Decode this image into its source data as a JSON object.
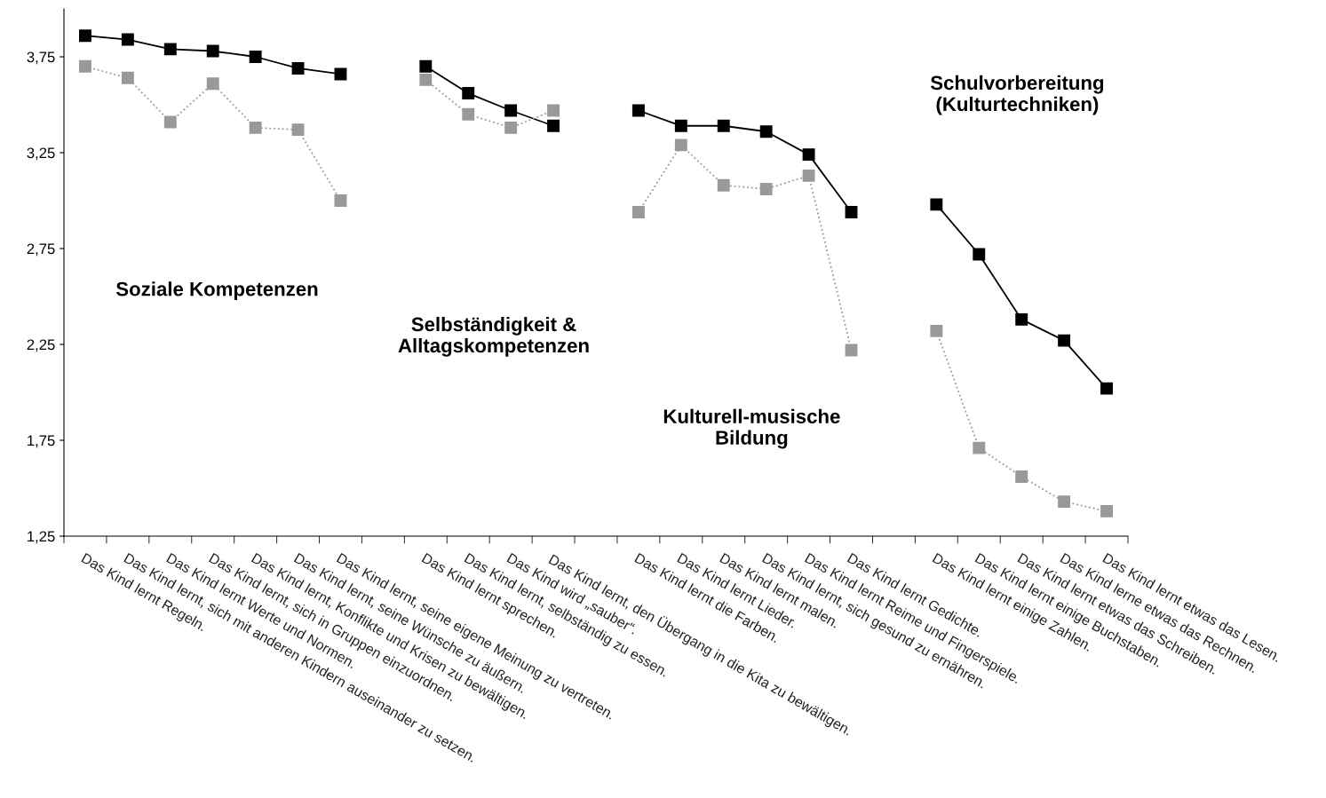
{
  "chart_data": {
    "type": "line",
    "categories": [
      "Das Kind lernt Regeln.",
      "Das Kind lernt, sich mit anderen Kindern auseinander zu setzen.",
      "Das Kind lernt Werte und Normen.",
      "Das Kind lernt, sich in Gruppen einzuordnen.",
      "Das Kind lernt, Konflikte und Krisen zu bewältigen.",
      "Das Kind lernt, seine Wünsche zu äußern.",
      "Das Kind lernt, seine eigene Meinung zu vertreten.",
      null,
      "Das Kind lernt sprechen.",
      "Das Kind lernt, selbständig zu essen.",
      "Das Kind wird „sauber“.",
      "Das Kind lernt, den Übergang in die Kita zu bewältigen.",
      null,
      "Das Kind lernt die Farben.",
      "Das Kind lernt Lieder.",
      "Das Kind lernt malen.",
      "Das Kind lernt, sich gesund zu ernähren.",
      "Das Kind lernt Reime und Fingerspiele.",
      "Das Kind lernt Gedichte.",
      null,
      "Das Kind lernt einige Zahlen.",
      "Das Kind lernt einige Buchstaben.",
      "Das Kind lernt etwas das Schreiben.",
      "Das Kind lerne etwas das Rechnen.",
      "Das Kind lernt etwas das Lesen."
    ],
    "series": [
      {
        "color": "#000000",
        "line_style": "solid",
        "values": [
          3.86,
          3.84,
          3.79,
          3.78,
          3.75,
          3.69,
          3.66,
          null,
          3.7,
          3.56,
          3.47,
          3.39,
          null,
          3.47,
          3.39,
          3.39,
          3.36,
          3.24,
          2.94,
          null,
          2.98,
          2.72,
          2.38,
          2.27,
          2.02
        ]
      },
      {
        "color": "#999999",
        "line_style": "dotted",
        "values": [
          3.7,
          3.64,
          3.41,
          3.61,
          3.38,
          3.37,
          3.0,
          null,
          3.63,
          3.45,
          3.38,
          3.47,
          null,
          2.94,
          3.29,
          3.08,
          3.06,
          3.13,
          2.22,
          null,
          2.32,
          1.71,
          1.56,
          1.43,
          1.38
        ]
      }
    ],
    "ylim": [
      1.25,
      4.0
    ],
    "yticks": [
      {
        "value": 1.25,
        "label": "1,25"
      },
      {
        "value": 1.75,
        "label": "1,75"
      },
      {
        "value": 2.25,
        "label": "2,25"
      },
      {
        "value": 2.75,
        "label": "2,75"
      },
      {
        "value": 3.25,
        "label": "3,25"
      },
      {
        "value": 3.75,
        "label": "3,75"
      }
    ],
    "marker": "square",
    "grid": false,
    "annotations": [
      "Soziale Kompetenzen",
      "Selbständigkeit &\nAlltagskompetenzen",
      "Kulturell-musische\nBildung",
      "Schulvorbereitung\n(Kulturtechniken)"
    ]
  }
}
